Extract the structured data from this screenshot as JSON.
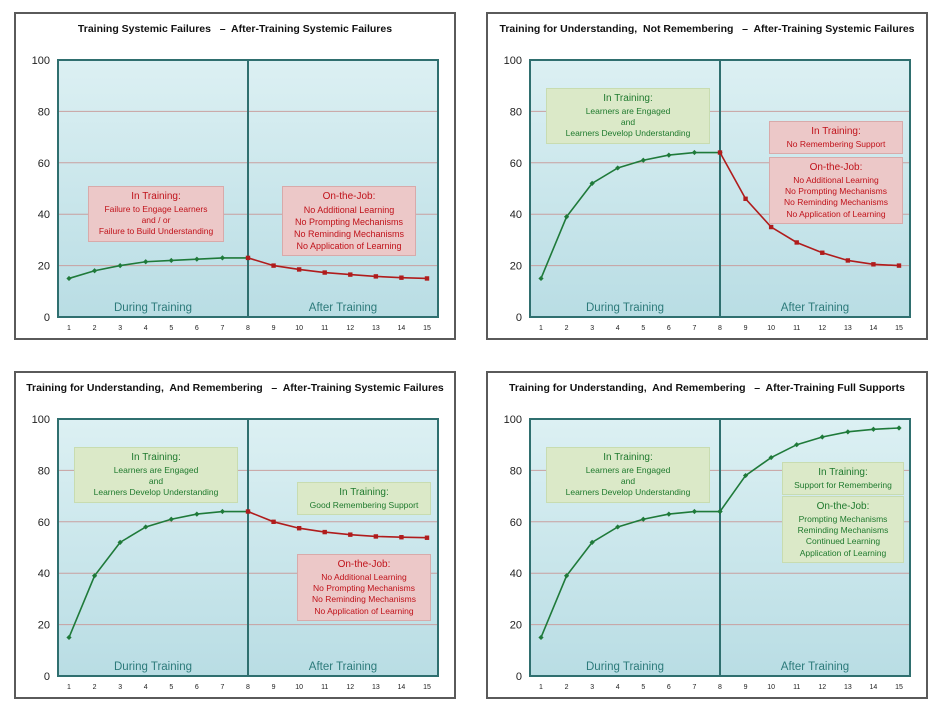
{
  "colors": {
    "line_during": "#1f7a3a",
    "line_after": "#b01c1c",
    "grid": "#c8a0a0",
    "divider": "#2f6f6f",
    "region_label": "#2c7a7a",
    "box_green_text": "#1f7a2e",
    "box_red_text": "#c0121a"
  },
  "chart_data": [
    {
      "type": "line",
      "title": "Training Systemic Failures   –  After-Training Systemic Failures",
      "x": [
        1,
        2,
        3,
        4,
        5,
        6,
        7,
        8,
        9,
        10,
        11,
        12,
        13,
        14,
        15
      ],
      "ylim": [
        0,
        100
      ],
      "yticks": [
        0,
        20,
        40,
        60,
        80,
        100
      ],
      "divider_x": 8,
      "region_labels": [
        "During  Training",
        "After Training"
      ],
      "series": [
        {
          "x": [
            1,
            2,
            3,
            4,
            5,
            6,
            7,
            8
          ],
          "values": [
            15,
            18,
            20,
            21.5,
            22,
            22.5,
            23,
            23
          ],
          "color": "#1f7a3a"
        },
        {
          "x": [
            8,
            9,
            10,
            11,
            12,
            13,
            14,
            15
          ],
          "values": [
            23,
            20,
            18.5,
            17.3,
            16.5,
            15.8,
            15.3,
            15
          ],
          "color": "#b01c1c"
        }
      ],
      "boxes": [
        {
          "style": "red",
          "header": "In Training:",
          "lines": [
            "Failure to Engage Learners",
            "and / or",
            "Failure to Build Understanding"
          ]
        },
        {
          "style": "red bigred",
          "header": "On-the-Job:",
          "lines": [
            "No Additional Learning",
            "No Prompting Mechanisms",
            "No Reminding Mechanisms",
            "No Application of Learning"
          ]
        }
      ]
    },
    {
      "type": "line",
      "title": "Training for Understanding,  Not Remembering   –  After-Training Systemic Failures",
      "x": [
        1,
        2,
        3,
        4,
        5,
        6,
        7,
        8,
        9,
        10,
        11,
        12,
        13,
        14,
        15
      ],
      "ylim": [
        0,
        100
      ],
      "yticks": [
        0,
        20,
        40,
        60,
        80,
        100
      ],
      "divider_x": 8,
      "region_labels": [
        "During  Training",
        "After Training"
      ],
      "series": [
        {
          "x": [
            1,
            2,
            3,
            4,
            5,
            6,
            7,
            8
          ],
          "values": [
            15,
            39,
            52,
            58,
            61,
            63,
            64,
            64
          ],
          "color": "#1f7a3a"
        },
        {
          "x": [
            8,
            9,
            10,
            11,
            12,
            13,
            14,
            15
          ],
          "values": [
            64,
            46,
            35,
            29,
            25,
            22,
            20.5,
            20
          ],
          "color": "#b01c1c"
        }
      ],
      "boxes": [
        {
          "style": "green",
          "header": "In Training:",
          "lines": [
            "Learners are Engaged",
            "and",
            "Learners Develop Understanding"
          ]
        },
        {
          "style": "red",
          "header": "In Training:",
          "lines": [
            "No Remembering Support"
          ]
        },
        {
          "style": "red",
          "header": "On-the-Job:",
          "lines": [
            "No Additional  Learning",
            "No Prompting Mechanisms",
            "No Reminding Mechanisms",
            "No Application  of Learning"
          ]
        }
      ]
    },
    {
      "type": "line",
      "title": "Training for Understanding,  And Remembering   –  After-Training Systemic Failures",
      "x": [
        1,
        2,
        3,
        4,
        5,
        6,
        7,
        8,
        9,
        10,
        11,
        12,
        13,
        14,
        15
      ],
      "ylim": [
        0,
        100
      ],
      "yticks": [
        0,
        20,
        40,
        60,
        80,
        100
      ],
      "divider_x": 8,
      "region_labels": [
        "During  Training",
        "After Training"
      ],
      "series": [
        {
          "x": [
            1,
            2,
            3,
            4,
            5,
            6,
            7,
            8
          ],
          "values": [
            15,
            39,
            52,
            58,
            61,
            63,
            64,
            64
          ],
          "color": "#1f7a3a"
        },
        {
          "x": [
            8,
            9,
            10,
            11,
            12,
            13,
            14,
            15
          ],
          "values": [
            64,
            60,
            57.5,
            56,
            55,
            54.3,
            54,
            53.8
          ],
          "color": "#b01c1c"
        }
      ],
      "boxes": [
        {
          "style": "green",
          "header": "In Training:",
          "lines": [
            "Learners are Engaged",
            "and",
            "Learners Develop Understanding"
          ]
        },
        {
          "style": "green",
          "header": "In Training:",
          "lines": [
            "Good Remembering Support"
          ]
        },
        {
          "style": "red",
          "header": "On-the-Job:",
          "lines": [
            "No Additional  Learning",
            "No Prompting  Mechanisms",
            "No Reminding Mechanisms",
            "No Application  of Learning"
          ]
        }
      ]
    },
    {
      "type": "line",
      "title": "Training for Understanding,  And Remembering   –  After-Training Full Supports",
      "x": [
        1,
        2,
        3,
        4,
        5,
        6,
        7,
        8,
        9,
        10,
        11,
        12,
        13,
        14,
        15
      ],
      "ylim": [
        0,
        100
      ],
      "yticks": [
        0,
        20,
        40,
        60,
        80,
        100
      ],
      "divider_x": 8,
      "region_labels": [
        "During  Training",
        "After Training"
      ],
      "series": [
        {
          "x": [
            1,
            2,
            3,
            4,
            5,
            6,
            7,
            8
          ],
          "values": [
            15,
            39,
            52,
            58,
            61,
            63,
            64,
            64
          ],
          "color": "#1f7a3a"
        },
        {
          "x": [
            8,
            9,
            10,
            11,
            12,
            13,
            14,
            15
          ],
          "values": [
            64,
            78,
            85,
            90,
            93,
            95,
            96,
            96.5
          ],
          "color": "#1f7a3a"
        }
      ],
      "boxes": [
        {
          "style": "green",
          "header": "In Training:",
          "lines": [
            "Learners are Engaged",
            "and",
            "Learners Develop Understanding"
          ]
        },
        {
          "style": "green",
          "header": "In Training:",
          "lines": [
            "Support for Remembering"
          ]
        },
        {
          "style": "green",
          "header": "On-the-Job:",
          "lines": [
            "Prompting  Mechanisms",
            "Reminding  Mechanisms",
            "Continued Learning",
            "Application  of Learning"
          ]
        }
      ]
    }
  ]
}
